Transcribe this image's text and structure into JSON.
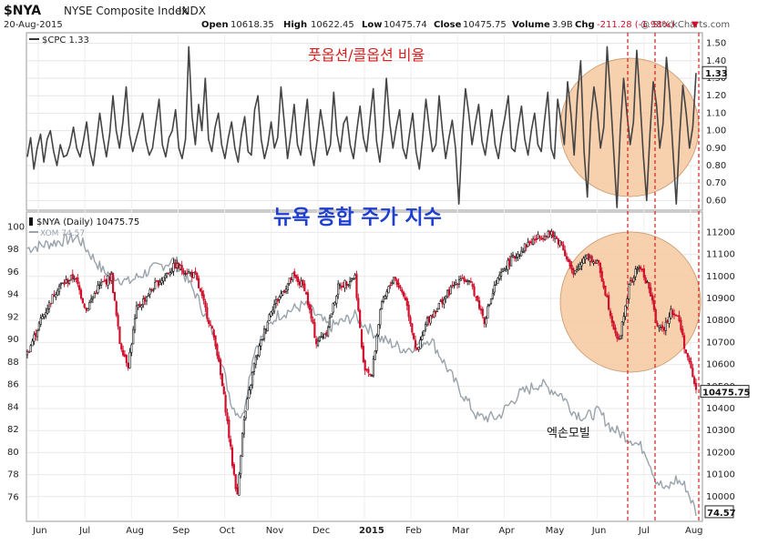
{
  "header": {
    "symbol": "$NYA",
    "name": "NYSE Composite Index",
    "exchange": "INDX",
    "date": "20-Aug-2015",
    "quote_labels": {
      "open": "Open",
      "high": "High",
      "low": "Low",
      "close": "Close",
      "volume": "Volume",
      "chg": "Chg"
    },
    "quote_values": {
      "open": "10618.35",
      "high": "10622.45",
      "low": "10475.74",
      "close": "10475.75",
      "volume": "3.9B",
      "chg": "-211.28 (-1.98%)"
    },
    "chg_arrow": "▼",
    "watermark": "@ StockCharts.com"
  },
  "colors": {
    "up_candle": "#111111",
    "down_candle": "#d0102c",
    "xom_line": "#9aa3ab",
    "cpc_line": "#444444",
    "highlight_fill": "#f6c9a0",
    "highlight_stroke": "#d0a27a",
    "dashed_marker": "#d81e1e",
    "annotation_title": "#d81e1e",
    "annotation_blue": "#1f3fd0"
  },
  "annotations": {
    "top_title": "풋옵션/콜옵션 비율",
    "main_title": "뉴욕 종합 주가 지수",
    "xom_label": "엑손모빌"
  },
  "chart_data": [
    {
      "type": "line",
      "panel": "top",
      "legend": "$CPC 1.33",
      "series": [
        {
          "name": "$CPC",
          "values": [
            0.85,
            0.96,
            0.78,
            0.9,
            0.98,
            0.82,
            0.95,
            1.0,
            0.88,
            0.8,
            0.92,
            0.85,
            0.86,
            0.92,
            1.02,
            0.9,
            0.85,
            0.94,
            1.05,
            0.88,
            0.8,
            0.94,
            1.1,
            0.96,
            0.85,
            0.98,
            1.2,
            1.0,
            0.9,
            1.05,
            1.25,
            0.98,
            0.88,
            0.95,
            1.02,
            1.1,
            0.94,
            0.86,
            0.9,
            1.04,
            1.18,
            0.92,
            0.85,
            0.96,
            1.0,
            1.12,
            0.9,
            0.84,
            0.95,
            1.48,
            1.08,
            0.92,
            1.15,
            1.0,
            1.3,
            0.95,
            0.88,
            1.02,
            1.1,
            0.92,
            0.84,
            0.96,
            1.05,
            0.9,
            0.82,
            0.98,
            1.08,
            0.88,
            0.86,
            1.12,
            1.2,
            0.95,
            0.84,
            0.92,
            1.05,
            0.9,
            0.96,
            1.25,
            1.05,
            0.84,
            0.98,
            1.15,
            0.92,
            0.86,
            1.02,
            1.18,
            0.9,
            0.8,
            0.95,
            1.12,
            1.0,
            0.86,
            0.92,
            1.22,
            0.98,
            0.88,
            1.04,
            1.08,
            0.92,
            0.84,
            1.0,
            1.14,
            0.96,
            0.88,
            1.06,
            1.24,
            0.94,
            0.82,
            1.0,
            1.3,
            1.05,
            0.9,
            1.02,
            1.12,
            0.9,
            0.84,
            0.98,
            1.1,
            0.88,
            0.78,
            0.96,
            1.18,
            1.02,
            0.88,
            0.92,
            1.2,
            1.0,
            0.84,
            0.96,
            1.06,
            0.9,
            0.58,
            0.98,
            1.24,
            1.1,
            0.92,
            1.04,
            1.15,
            0.94,
            0.86,
            1.0,
            1.12,
            0.92,
            0.84,
            0.98,
            1.08,
            1.2,
            0.9,
            0.88,
            1.02,
            1.14,
            0.95,
            0.86,
            1.0,
            1.1,
            0.92,
            0.88,
            1.06,
            1.22,
            0.9,
            0.84,
            1.18,
            1.05,
            0.92,
            1.28,
            1.1,
            0.86,
            1.2,
            1.4,
            0.88,
            0.62,
            1.05,
            1.25,
            1.12,
            0.9,
            1.02,
            1.48,
            1.2,
            0.88,
            0.56,
            1.0,
            1.3,
            1.1,
            0.92,
            1.05,
            1.46,
            1.18,
            0.86,
            0.6,
            0.98,
            1.28,
            1.15,
            0.9,
            1.04,
            1.42,
            1.2,
            0.88,
            0.58,
            0.96,
            1.26,
            1.1,
            0.9,
            1.02,
            1.33
          ]
        }
      ],
      "y_ticks": [
        0.6,
        0.7,
        0.8,
        0.9,
        1.0,
        1.1,
        1.2,
        1.3,
        1.4,
        1.5
      ],
      "ylim": [
        0.55,
        1.55
      ],
      "last_value": "1.33"
    },
    {
      "type": "candlestick",
      "panel": "bottom",
      "legend_nya": "$NYA (Daily) 10475.75",
      "legend_xom": "XOM 74.57",
      "x_ticks": [
        "Jun",
        "Jul",
        "Aug",
        "Sep",
        "Oct",
        "Nov",
        "Dec",
        "2015",
        "Feb",
        "Mar",
        "Apr",
        "May",
        "Jun",
        "Jul",
        "Aug"
      ],
      "nya_path": [
        [
          0,
          10650
        ],
        [
          8,
          10800
        ],
        [
          18,
          10950
        ],
        [
          28,
          11000
        ],
        [
          35,
          10850
        ],
        [
          42,
          10950
        ],
        [
          50,
          11000
        ],
        [
          55,
          10700
        ],
        [
          60,
          10600
        ],
        [
          65,
          10850
        ],
        [
          75,
          10950
        ],
        [
          88,
          11050
        ],
        [
          100,
          11000
        ],
        [
          108,
          10800
        ],
        [
          112,
          10700
        ],
        [
          118,
          10400
        ],
        [
          122,
          10150
        ],
        [
          125,
          10000
        ],
        [
          128,
          10300
        ],
        [
          135,
          10600
        ],
        [
          145,
          10850
        ],
        [
          158,
          11000
        ],
        [
          165,
          10950
        ],
        [
          172,
          10700
        ],
        [
          178,
          10750
        ],
        [
          185,
          10950
        ],
        [
          195,
          11000
        ],
        [
          200,
          10600
        ],
        [
          205,
          10550
        ],
        [
          210,
          10850
        ],
        [
          218,
          11000
        ],
        [
          225,
          10900
        ],
        [
          232,
          10650
        ],
        [
          238,
          10800
        ],
        [
          248,
          10900
        ],
        [
          258,
          11000
        ],
        [
          265,
          10950
        ],
        [
          272,
          10800
        ],
        [
          278,
          10950
        ],
        [
          285,
          11050
        ],
        [
          298,
          11150
        ],
        [
          310,
          11200
        ],
        [
          318,
          11150
        ],
        [
          325,
          11000
        ],
        [
          332,
          11100
        ],
        [
          340,
          11050
        ],
        [
          345,
          10900
        ],
        [
          348,
          10800
        ],
        [
          352,
          10700
        ],
        [
          358,
          10950
        ],
        [
          364,
          11050
        ],
        [
          370,
          10950
        ],
        [
          374,
          10800
        ],
        [
          378,
          10750
        ],
        [
          383,
          10850
        ],
        [
          388,
          10800
        ],
        [
          392,
          10650
        ],
        [
          396,
          10550
        ],
        [
          398,
          10476
        ]
      ],
      "nya_ylim": [
        9900,
        11280
      ],
      "nya_ticks": [
        10000,
        10100,
        10200,
        10300,
        10400,
        10500,
        10600,
        10700,
        10800,
        10900,
        11000,
        11100,
        11200
      ],
      "nya_last": "10475.75",
      "xom_path": [
        [
          0,
          98
        ],
        [
          15,
          98.5
        ],
        [
          30,
          99
        ],
        [
          45,
          96
        ],
        [
          60,
          95
        ],
        [
          72,
          96
        ],
        [
          88,
          97
        ],
        [
          100,
          94
        ],
        [
          112,
          90
        ],
        [
          122,
          84
        ],
        [
          128,
          83
        ],
        [
          135,
          89
        ],
        [
          148,
          92
        ],
        [
          165,
          93
        ],
        [
          180,
          91
        ],
        [
          195,
          92
        ],
        [
          210,
          90
        ],
        [
          225,
          89
        ],
        [
          240,
          90
        ],
        [
          255,
          86
        ],
        [
          268,
          83
        ],
        [
          280,
          83
        ],
        [
          292,
          85
        ],
        [
          305,
          86
        ],
        [
          318,
          85
        ],
        [
          325,
          83.5
        ],
        [
          332,
          83
        ],
        [
          340,
          83.5
        ],
        [
          348,
          82
        ],
        [
          360,
          81
        ],
        [
          368,
          80
        ],
        [
          374,
          77.5
        ],
        [
          380,
          76.5
        ],
        [
          386,
          77.5
        ],
        [
          392,
          76.8
        ],
        [
          398,
          74.57
        ]
      ],
      "xom_ylim": [
        74.0,
        101
      ],
      "xom_ticks": [
        76,
        78,
        80,
        82,
        84,
        86,
        88,
        90,
        92,
        94,
        96,
        98,
        100
      ],
      "xom_last": "74.57"
    }
  ]
}
